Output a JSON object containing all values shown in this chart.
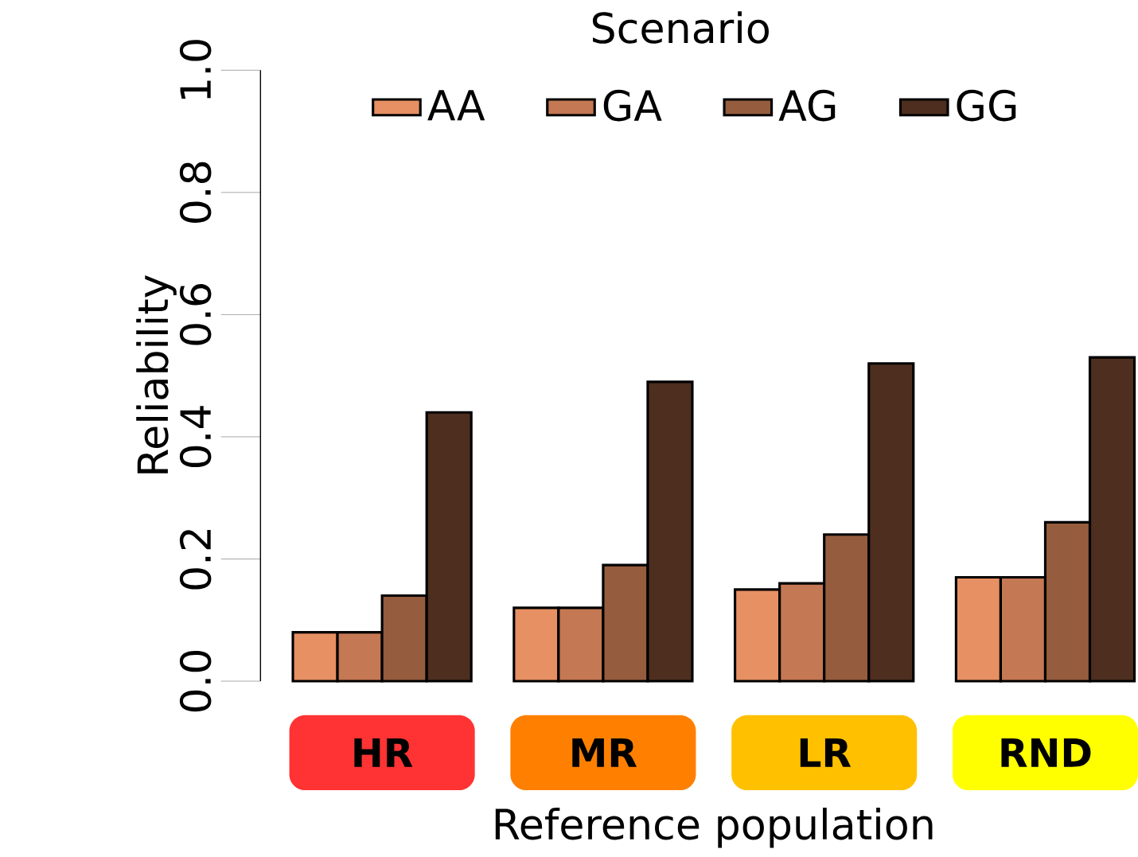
{
  "chart_data": {
    "type": "bar",
    "xlabel": "Reference population",
    "ylabel": "Reliability",
    "legend_title": "Scenario",
    "legend": "top",
    "categories": [
      "HR",
      "MR",
      "LR",
      "RND"
    ],
    "ylim": [
      0,
      1
    ],
    "yticks": [
      {
        "value": 0,
        "label": "0.0"
      },
      {
        "value": 0.2,
        "label": "0.2"
      },
      {
        "value": 0.4,
        "label": "0.4"
      },
      {
        "value": 0.6,
        "label": "0.6"
      },
      {
        "value": 0.8,
        "label": "0.8"
      },
      {
        "value": 1,
        "label": "1.0"
      }
    ],
    "series": [
      {
        "name": "AA",
        "color": "#e69063",
        "values": [
          0.08,
          0.12,
          0.15,
          0.17
        ]
      },
      {
        "name": "GA",
        "color": "#c47853",
        "values": [
          0.08,
          0.12,
          0.16,
          0.17
        ]
      },
      {
        "name": "AG",
        "color": "#955c3e",
        "values": [
          0.14,
          0.19,
          0.24,
          0.26
        ]
      },
      {
        "name": "GG",
        "color": "#4d2e1f",
        "values": [
          0.44,
          0.49,
          0.52,
          0.53
        ]
      }
    ]
  }
}
